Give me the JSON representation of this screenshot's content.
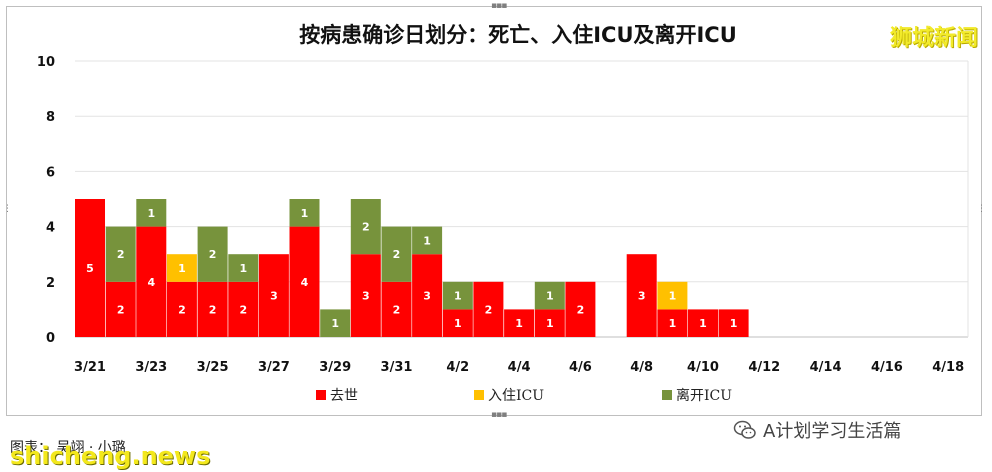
{
  "chart_data": {
    "type": "bar",
    "stacked": true,
    "title": "按病患确诊日划分：死亡、入住ICU及离开ICU",
    "categories": [
      "3/21",
      "3/22",
      "3/23",
      "3/24",
      "3/25",
      "3/26",
      "3/27",
      "3/28",
      "3/29",
      "3/30",
      "3/31",
      "4/1",
      "4/2",
      "4/3",
      "4/4",
      "4/5",
      "4/6",
      "4/7",
      "4/8",
      "4/9",
      "4/10",
      "4/11",
      "4/12",
      "4/13",
      "4/14",
      "4/15",
      "4/16",
      "4/17",
      "4/18"
    ],
    "tick_labels": [
      "3/21",
      "3/23",
      "3/25",
      "3/27",
      "3/29",
      "3/31",
      "4/2",
      "4/4",
      "4/6",
      "4/8",
      "4/10",
      "4/12",
      "4/14",
      "4/16",
      "4/18"
    ],
    "series": [
      {
        "name": "去世",
        "color": "#ff0000",
        "values": [
          5,
          2,
          4,
          2,
          2,
          2,
          3,
          4,
          0,
          3,
          2,
          3,
          1,
          2,
          1,
          1,
          2,
          0,
          3,
          1,
          1,
          1,
          0,
          0,
          0,
          0,
          0,
          0,
          0
        ]
      },
      {
        "name": "入住ICU",
        "color": "#ffc000",
        "values": [
          0,
          0,
          0,
          1,
          0,
          0,
          0,
          0,
          0,
          0,
          0,
          0,
          0,
          0,
          0,
          0,
          0,
          0,
          0,
          1,
          0,
          0,
          0,
          0,
          0,
          0,
          0,
          0,
          0
        ]
      },
      {
        "name": "离开ICU",
        "color": "#77933c",
        "values": [
          0,
          2,
          1,
          0,
          2,
          1,
          0,
          1,
          1,
          2,
          2,
          1,
          1,
          0,
          0,
          1,
          0,
          0,
          0,
          0,
          0,
          0,
          0,
          0,
          0,
          0,
          0,
          0,
          0
        ]
      }
    ],
    "ylim": [
      0,
      10
    ],
    "yticks": [
      0,
      2,
      4,
      6,
      8,
      10
    ],
    "grid": true,
    "legend_position": "bottom"
  },
  "watermarks": {
    "top_right": "狮城新闻",
    "bottom_left": "shicheng.news"
  },
  "footer": {
    "note": "图表： 吴翊 · 小璐",
    "wechat_account": "A计划学习生活篇"
  }
}
